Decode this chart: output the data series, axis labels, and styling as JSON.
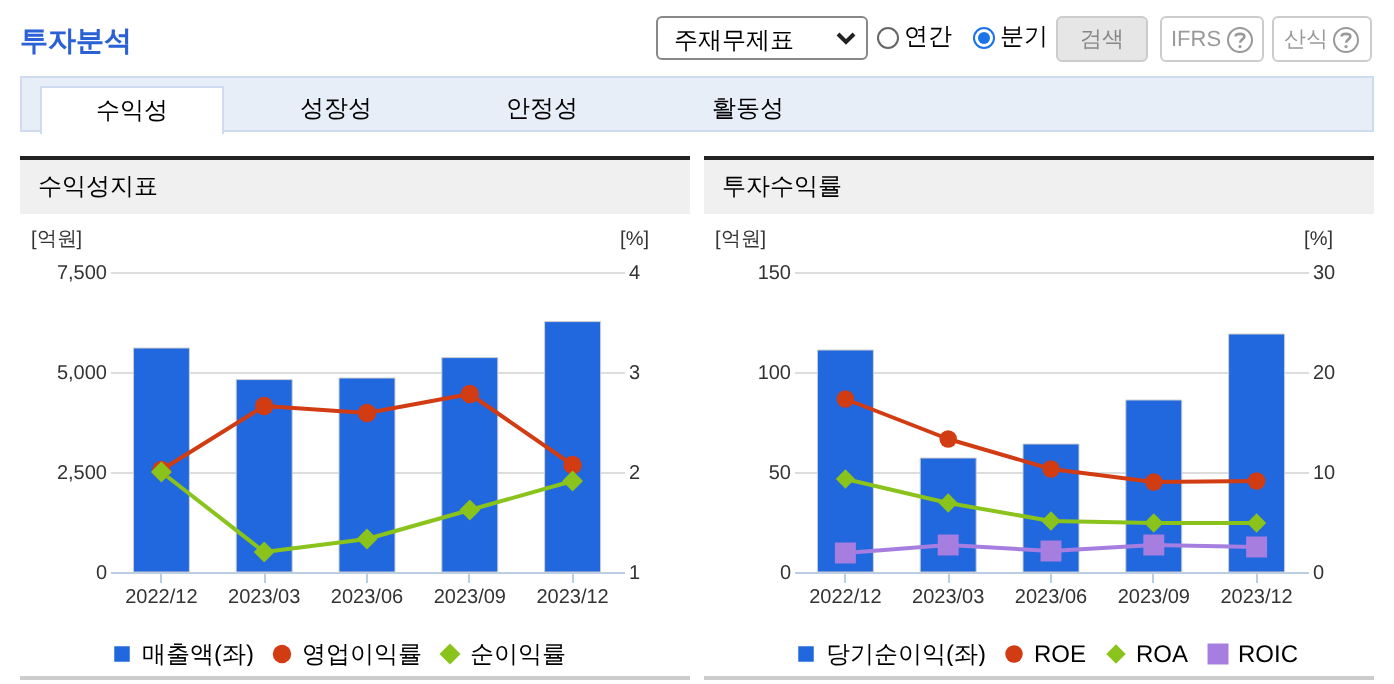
{
  "chart_data": [
    {
      "type": "other",
      "title": "투자분석",
      "annotations": [
        "주재무제표",
        "연간",
        "분기",
        "검색",
        "IFRS",
        "산식",
        "수익성",
        "성장성",
        "안정성",
        "활동성"
      ]
    },
    {
      "type": "bar",
      "title": "수익성지표",
      "ylabel": "[억원]",
      "y2label": "[%]",
      "categories": [
        "2022/12",
        "2023/03",
        "2023/06",
        "2023/09",
        "2023/12"
      ],
      "series": [
        {
          "name": "매출액(좌)",
          "type": "bar",
          "color": "#2167dd",
          "values": [
            5600,
            4810,
            4850,
            5360,
            6260
          ]
        },
        {
          "name": "영업이익률",
          "type": "line",
          "axis": "y2",
          "marker": "circle",
          "color": "#d23c13",
          "values": [
            2.02,
            2.66,
            2.59,
            2.78,
            2.07
          ]
        },
        {
          "name": "순이익률",
          "type": "line",
          "axis": "y2",
          "marker": "diamond",
          "color": "#8ac31b",
          "values": [
            2.0,
            1.2,
            1.33,
            1.62,
            1.91
          ]
        }
      ],
      "ylim": [
        0,
        7500
      ],
      "yticks": [
        0,
        {
          "value": 2500,
          "label": "2,500"
        },
        {
          "value": 5000,
          "label": "5,000"
        },
        {
          "value": 7500,
          "label": "7,500"
        }
      ],
      "y2lim": [
        1,
        4
      ],
      "y2ticks": [
        1,
        2,
        3,
        4
      ],
      "grid": "y",
      "legend": "bottom"
    },
    {
      "type": "bar",
      "title": "투자수익률",
      "ylabel": "[억원]",
      "y2label": "[%]",
      "categories": [
        "2022/12",
        "2023/03",
        "2023/06",
        "2023/09",
        "2023/12"
      ],
      "series": [
        {
          "name": "당기순이익(좌)",
          "type": "bar",
          "color": "#2167dd",
          "values": [
            111,
            57,
            64,
            86,
            119
          ]
        },
        {
          "name": "ROE",
          "type": "line",
          "axis": "y2",
          "marker": "circle",
          "color": "#d23c13",
          "values": [
            17.3,
            13.3,
            10.3,
            9.0,
            9.1
          ]
        },
        {
          "name": "ROA",
          "type": "line",
          "axis": "y2",
          "marker": "diamond",
          "color": "#8ac31b",
          "values": [
            9.3,
            6.9,
            5.1,
            4.9,
            4.9
          ]
        },
        {
          "name": "ROIC",
          "type": "line",
          "axis": "y2",
          "marker": "square",
          "color": "#a57ee0",
          "values": [
            1.9,
            2.7,
            2.1,
            2.7,
            2.5
          ]
        }
      ],
      "ylim": [
        0,
        150
      ],
      "yticks": [
        0,
        50,
        100,
        150
      ],
      "y2lim": [
        0,
        30
      ],
      "y2ticks": [
        0,
        10,
        20,
        30
      ],
      "grid": "y",
      "legend": "bottom"
    }
  ]
}
